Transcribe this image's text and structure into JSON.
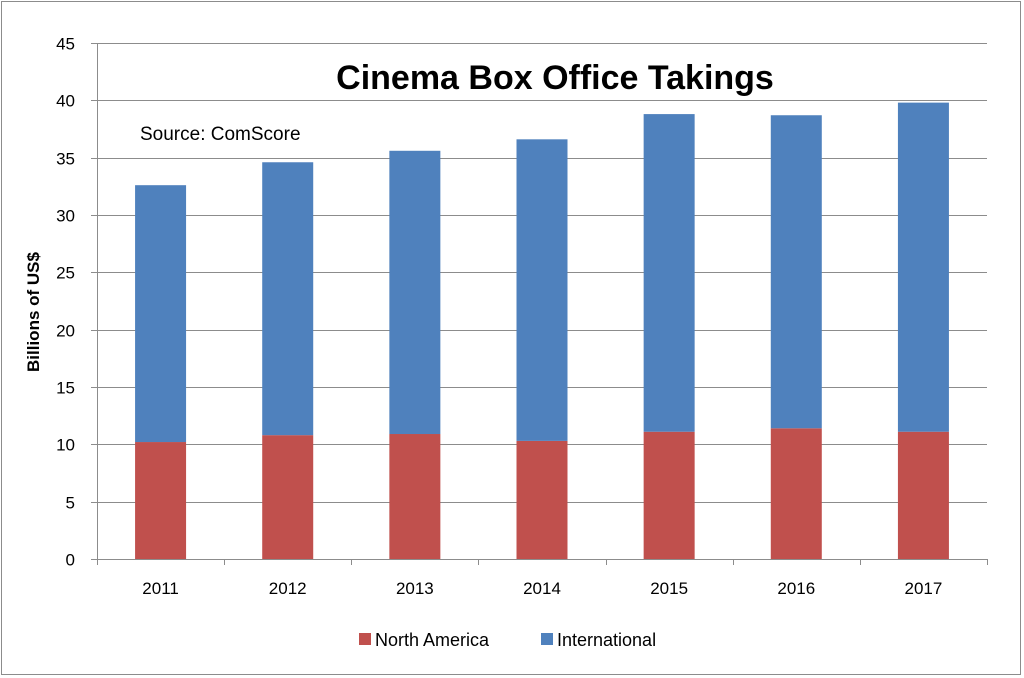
{
  "chart_data": {
    "type": "bar",
    "stacked": true,
    "title": "Cinema Box Office Takings",
    "annotation": "Source: ComScore",
    "xlabel": "",
    "ylabel": "Billions of US$",
    "ylim": [
      0,
      45
    ],
    "yticks": [
      "0",
      "5",
      "10",
      "15",
      "20",
      "25",
      "30",
      "35",
      "40",
      "45"
    ],
    "grid": true,
    "legend_position": "bottom",
    "categories": [
      "2011",
      "2012",
      "2013",
      "2014",
      "2015",
      "2016",
      "2017"
    ],
    "series": [
      {
        "name": "North America",
        "color": "#c0504d",
        "values": [
          10.2,
          10.8,
          10.9,
          10.3,
          11.1,
          11.4,
          11.1
        ]
      },
      {
        "name": "International",
        "color": "#4f81bd",
        "values": [
          22.4,
          23.8,
          24.7,
          26.3,
          27.7,
          27.3,
          28.7
        ]
      }
    ]
  }
}
